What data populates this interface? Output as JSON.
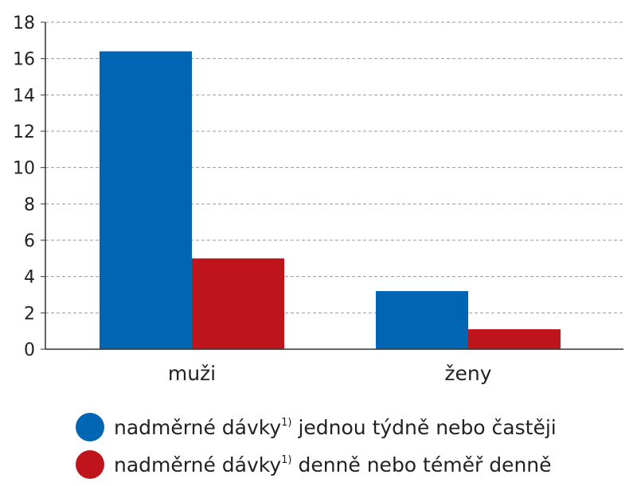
{
  "chart_data": {
    "type": "bar",
    "categories": [
      "muži",
      "ženy"
    ],
    "series": [
      {
        "name": "nadměrné dávky",
        "sup": "1)",
        "suffix": " jednou týdně nebo častěji",
        "color": "#0066b3",
        "values": [
          16.4,
          3.2
        ]
      },
      {
        "name": "nadměrné dávky",
        "sup": "1)",
        "suffix": " denně nebo téměř denně",
        "color": "#c0141c",
        "values": [
          5.0,
          1.1
        ]
      }
    ],
    "ylim": [
      0,
      18
    ],
    "yticks": [
      0,
      2,
      4,
      6,
      8,
      10,
      12,
      14,
      16,
      18
    ],
    "grid": true,
    "legend_position": "bottom",
    "axis_color": "#333333",
    "grid_color": "#9a9a9a"
  }
}
